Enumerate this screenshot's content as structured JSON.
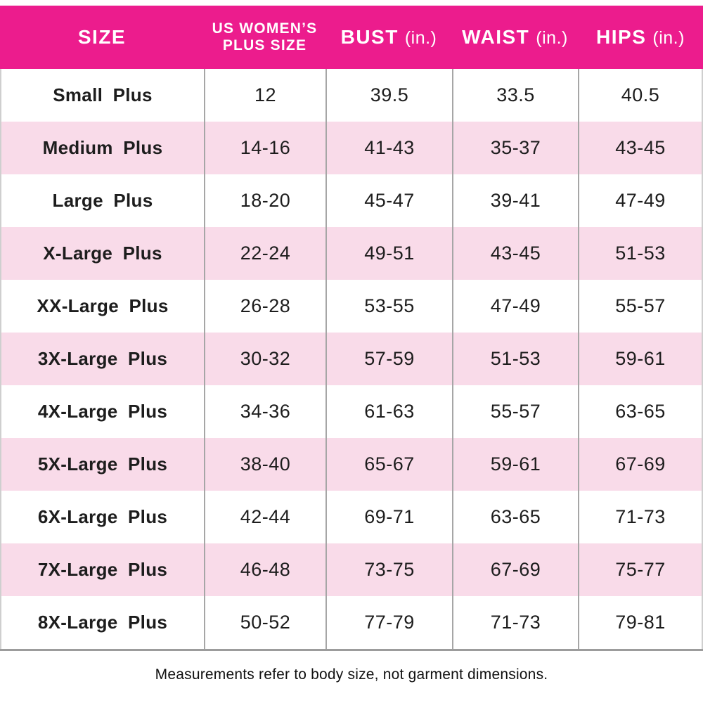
{
  "chart_data": {
    "type": "table",
    "columns": [
      {
        "id": "size",
        "label": "SIZE"
      },
      {
        "id": "us-plus-size",
        "label": "US WOMEN’S",
        "label2": "PLUS SIZE"
      },
      {
        "id": "bust",
        "label": "BUST",
        "unit": "(in.)"
      },
      {
        "id": "waist",
        "label": "WAIST",
        "unit": "(in.)"
      },
      {
        "id": "hips",
        "label": "HIPS",
        "unit": "(in.)"
      }
    ],
    "rows": [
      [
        "Small Plus",
        "12",
        "39.5",
        "33.5",
        "40.5"
      ],
      [
        "Medium Plus",
        "14-16",
        "41-43",
        "35-37",
        "43-45"
      ],
      [
        "Large Plus",
        "18-20",
        "45-47",
        "39-41",
        "47-49"
      ],
      [
        "X-Large Plus",
        "22-24",
        "49-51",
        "43-45",
        "51-53"
      ],
      [
        "XX-Large Plus",
        "26-28",
        "53-55",
        "47-49",
        "55-57"
      ],
      [
        "3X-Large Plus",
        "30-32",
        "57-59",
        "51-53",
        "59-61"
      ],
      [
        "4X-Large Plus",
        "34-36",
        "61-63",
        "55-57",
        "63-65"
      ],
      [
        "5X-Large Plus",
        "38-40",
        "65-67",
        "59-61",
        "67-69"
      ],
      [
        "6X-Large Plus",
        "42-44",
        "69-71",
        "63-65",
        "71-73"
      ],
      [
        "7X-Large Plus",
        "46-48",
        "73-75",
        "67-69",
        "75-77"
      ],
      [
        "8X-Large Plus",
        "50-52",
        "77-79",
        "71-73",
        "79-81"
      ]
    ],
    "footnote": "Measurements refer to body size, not garment dimensions.",
    "layout": {
      "alternating_rows": true,
      "grid_lines": "vertical-only",
      "legend": "none"
    }
  },
  "colors": {
    "header_bg": "#EC1C8D",
    "header_text": "#FFFFFF",
    "row_alt_bg": "#F9DBE9",
    "row_bg": "#FFFFFF",
    "grid_line": "#A6A6A6",
    "outer_border": "#CFCFCF",
    "bottom_border": "#9C9C9C",
    "body_text": "#1D1D1D"
  }
}
